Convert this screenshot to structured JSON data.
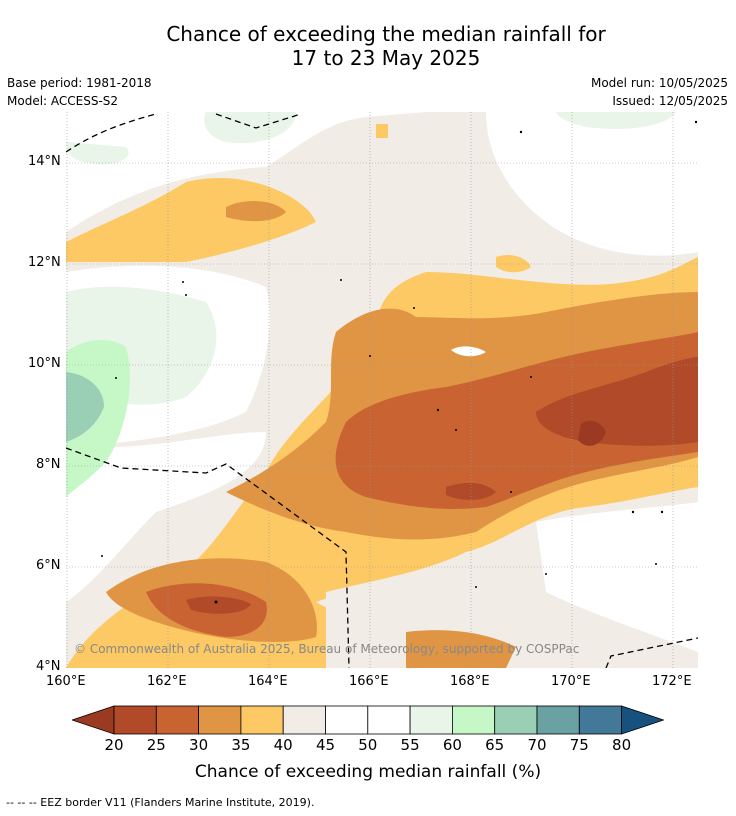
{
  "title_line1": "Chance of exceeding the median rainfall for",
  "title_line2": "17 to 23 May 2025",
  "base_period": "Base period: 1981-2018",
  "model": "Model: ACCESS-S2",
  "model_run": "Model run: 10/05/2025",
  "issued": "Issued: 12/05/2025",
  "copyright": "© Commonwealth of Australia 2025, Bureau of Meteorology, supported by COSPPac",
  "lat_labels": [
    "14°N",
    "12°N",
    "10°N",
    "8°N",
    "6°N",
    "4°N"
  ],
  "lon_labels": [
    "160°E",
    "162°E",
    "164°E",
    "166°E",
    "168°E",
    "170°E",
    "172°E"
  ],
  "colorbar": {
    "title": "Chance of exceeding median rainfall (%)",
    "ticks": [
      "20",
      "25",
      "30",
      "35",
      "40",
      "45",
      "50",
      "55",
      "60",
      "65",
      "70",
      "75",
      "80"
    ],
    "colors": {
      "below_20": "#9b3a22",
      "20_25": "#b04a28",
      "25_30": "#c96432",
      "30_35": "#e09544",
      "35_40": "#fdc964",
      "40_45": "#f1ece6",
      "45_50": "#ffffff",
      "50_55": "#ffffff",
      "55_60": "#e8f5e8",
      "60_65": "#c6f7c6",
      "65_70": "#9bcfb5",
      "70_75": "#6aa2a4",
      "75_80": "#427998",
      "above_80": "#17517f"
    }
  },
  "footnote": "--  --  -- EEZ border V11 (Flanders Marine Institute, 2019)."
}
